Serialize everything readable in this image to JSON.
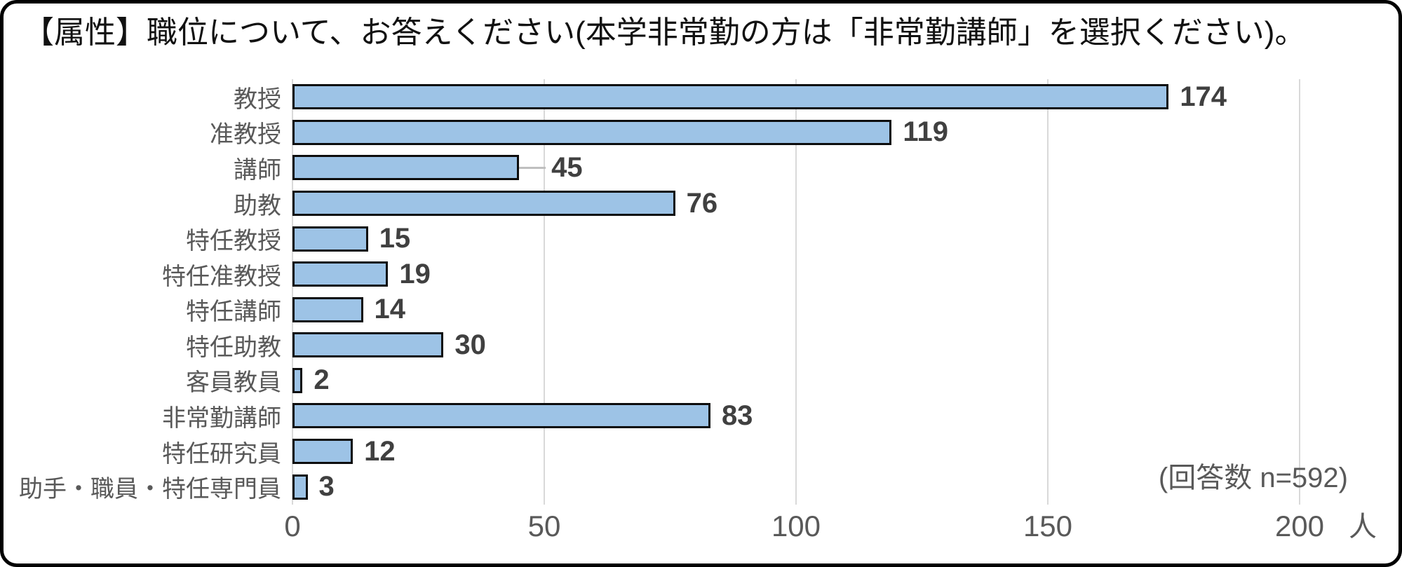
{
  "title": "【属性】職位について、お答えください(本学非常勤の方は「非常勤講師」を選択ください)。",
  "annotation": "(回答数 n=592)",
  "chart_data": {
    "type": "bar",
    "orientation": "horizontal",
    "title": "【属性】職位について、お答えください(本学非常勤の方は「非常勤講師」を選択ください)。",
    "categories": [
      "教授",
      "准教授",
      "講師",
      "助教",
      "特任教授",
      "特任准教授",
      "特任講師",
      "特任助教",
      "客員教員",
      "非常勤講師",
      "特任研究員",
      "助手・職員・特任専門員"
    ],
    "values": [
      174,
      119,
      45,
      76,
      15,
      19,
      14,
      30,
      2,
      83,
      12,
      3
    ],
    "xlabel": "",
    "ylabel": "",
    "x_unit": "人",
    "xlim": [
      0,
      200
    ],
    "x_ticks": [
      0,
      50,
      100,
      150,
      200
    ],
    "grid": true,
    "legend": "none",
    "annotation": "(回答数 n=592)",
    "colors": {
      "bar_fill": "#9DC3E6",
      "bar_border": "#0D0D0D",
      "gridline": "#D9D9D9",
      "axis_label": "#595959",
      "value_label": "#404040",
      "leader_line": "#BFBFBF"
    },
    "leader_line_categories": [
      "講師"
    ]
  }
}
